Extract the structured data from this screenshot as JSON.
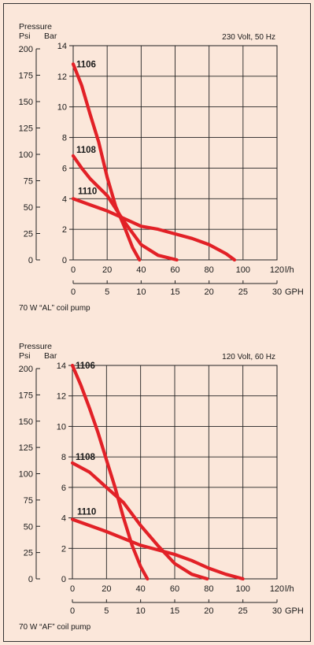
{
  "chart_data": [
    {
      "type": "line",
      "header_label": "Pressure",
      "psi_unit": "Psi",
      "bar_unit": "Bar",
      "condition": "230 Volt, 50 Hz",
      "caption": "70 W “AL” coil pump",
      "x_unit_lh": "l/h",
      "x_unit_gph": "GPH",
      "xlim_lh": [
        0,
        120
      ],
      "ylim_bar": [
        0,
        14
      ],
      "lh_ticks": [
        0,
        20,
        40,
        60,
        80,
        100,
        120
      ],
      "gph_ticks": [
        0,
        5,
        10,
        15,
        20,
        25,
        30
      ],
      "bar_ticks": [
        0,
        2,
        4,
        6,
        8,
        10,
        12,
        14
      ],
      "psi_ticks": [
        0,
        25,
        50,
        75,
        100,
        125,
        150,
        175,
        200
      ],
      "grid": true,
      "series": [
        {
          "name": "1106",
          "x": [
            0,
            5,
            10,
            15,
            20,
            25,
            30,
            35,
            39
          ],
          "y": [
            12.8,
            11.4,
            9.5,
            7.7,
            5.4,
            3.5,
            2.2,
            0.8,
            0
          ]
        },
        {
          "name": "1108",
          "x": [
            0,
            5,
            10,
            20,
            30,
            40,
            50,
            61
          ],
          "y": [
            6.8,
            6.0,
            5.3,
            4.2,
            2.5,
            1.0,
            0.3,
            0
          ]
        },
        {
          "name": "1110",
          "x": [
            0,
            10,
            20,
            30,
            40,
            50,
            60,
            70,
            80,
            90,
            95
          ],
          "y": [
            4.0,
            3.6,
            3.2,
            2.7,
            2.2,
            2.0,
            1.7,
            1.4,
            1.0,
            0.4,
            0
          ]
        }
      ]
    },
    {
      "type": "line",
      "header_label": "Pressure",
      "psi_unit": "Psi",
      "bar_unit": "Bar",
      "condition": "120 Volt, 60 Hz",
      "caption": "70 W “AF” coil pump",
      "x_unit_lh": "l/h",
      "x_unit_gph": "GPH",
      "xlim_lh": [
        0,
        120
      ],
      "ylim_bar": [
        0,
        14
      ],
      "lh_ticks": [
        0,
        20,
        40,
        60,
        80,
        100,
        120
      ],
      "gph_ticks": [
        0,
        5,
        10,
        15,
        20,
        25,
        30
      ],
      "bar_ticks": [
        0,
        2,
        4,
        6,
        8,
        10,
        12,
        14
      ],
      "psi_ticks": [
        0,
        25,
        50,
        75,
        100,
        125,
        150,
        175,
        200
      ],
      "grid": true,
      "series": [
        {
          "name": "1106",
          "x": [
            0,
            5,
            10,
            15,
            20,
            25,
            30,
            35,
            40,
            44
          ],
          "y": [
            14.0,
            12.7,
            11.2,
            9.6,
            7.8,
            6.0,
            4.0,
            2.2,
            0.8,
            0
          ]
        },
        {
          "name": "1108",
          "x": [
            0,
            10,
            20,
            30,
            40,
            50,
            60,
            70,
            79
          ],
          "y": [
            7.6,
            7.0,
            6.0,
            5.0,
            3.5,
            2.2,
            1.0,
            0.3,
            0
          ]
        },
        {
          "name": "1110",
          "x": [
            0,
            20,
            40,
            60,
            70,
            80,
            90,
            100
          ],
          "y": [
            3.9,
            3.1,
            2.2,
            1.6,
            1.2,
            0.7,
            0.3,
            0
          ]
        }
      ]
    }
  ]
}
